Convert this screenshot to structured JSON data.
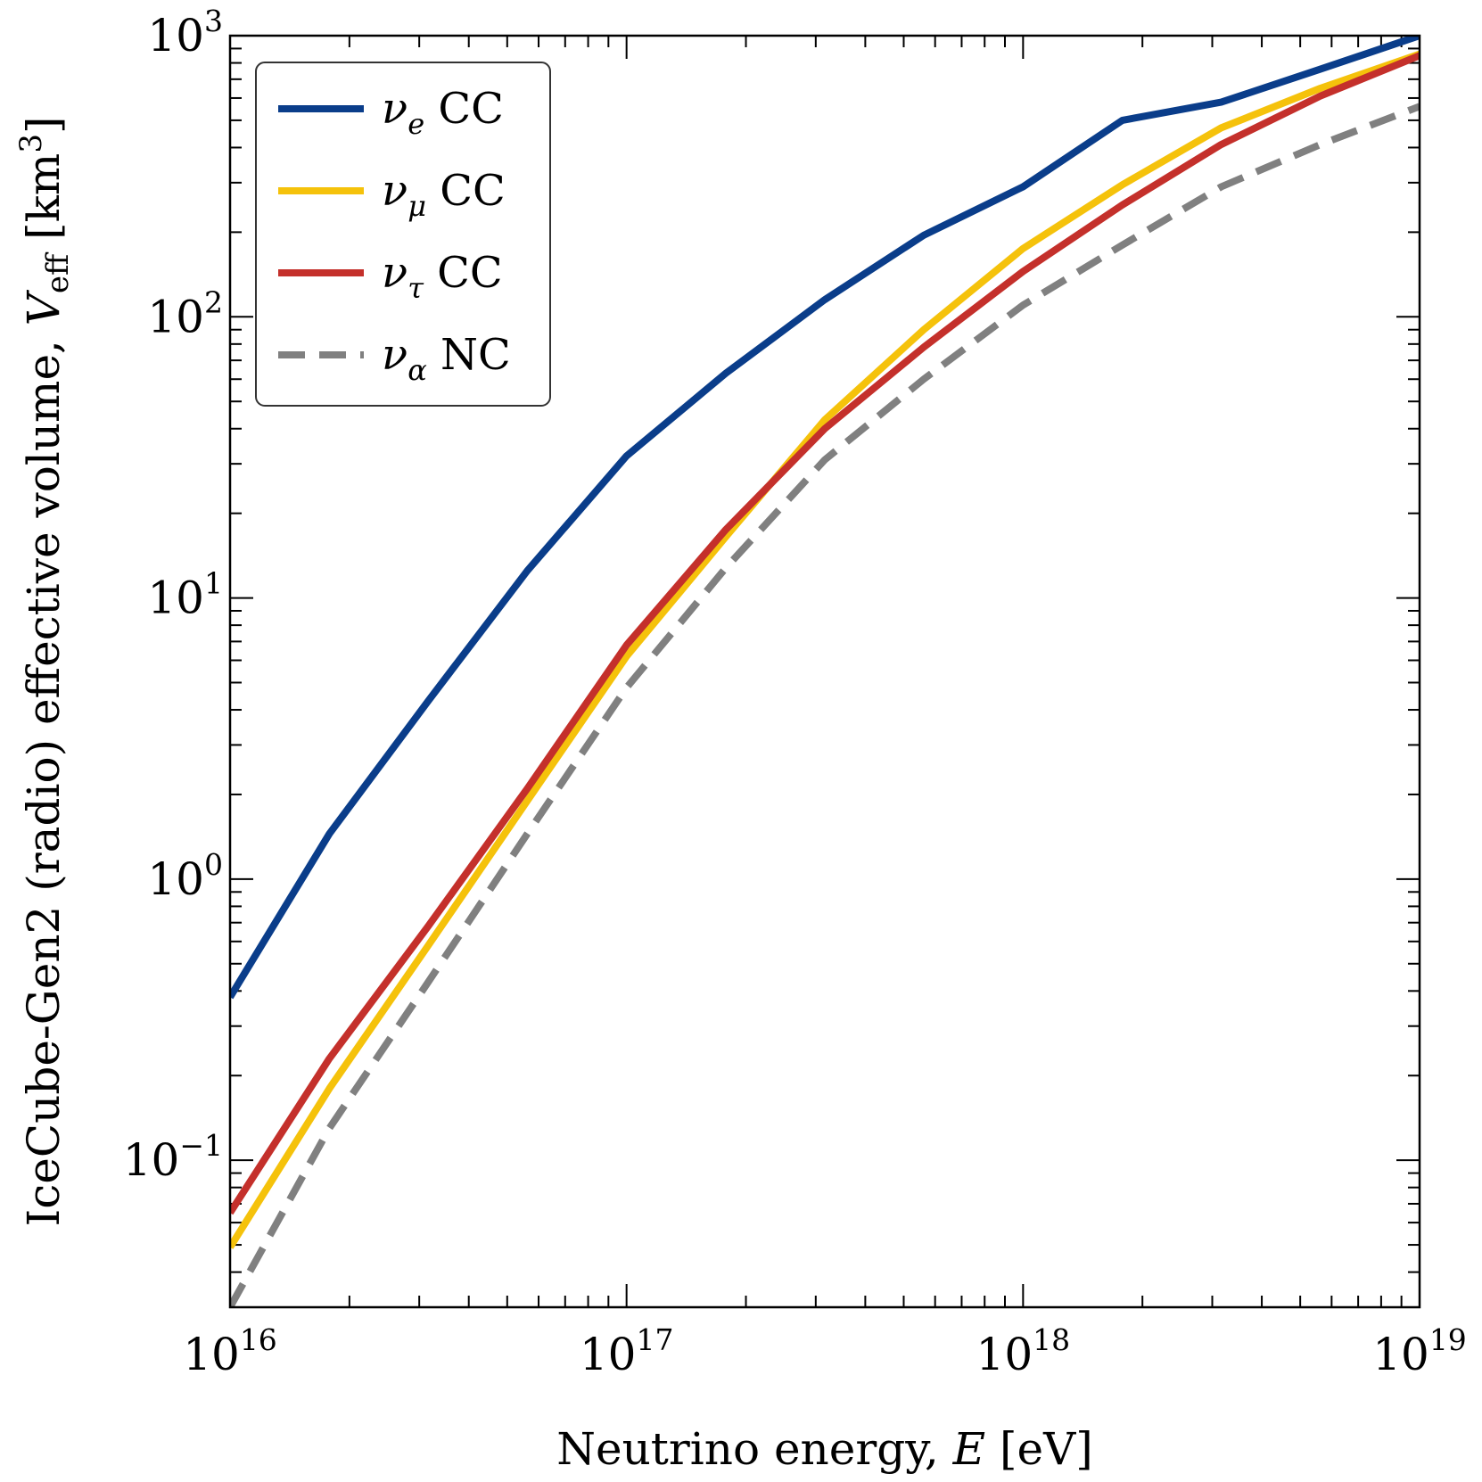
{
  "chart_data": {
    "type": "line",
    "xlabel": "Neutrino energy, E [eV]",
    "ylabel": "IceCube-Gen2 (radio) effective volume, V_eff [km^3]",
    "xlabel_parts": {
      "main": "Neutrino energy, ",
      "var": "E",
      "unit": " [eV]"
    },
    "ylabel_parts": {
      "main": "IceCube-Gen2 (radio) effective volume, ",
      "var": "V",
      "sub": "eff",
      "unit_open": " [km",
      "unit_sup": "3",
      "unit_close": "]"
    },
    "xscale": "log",
    "yscale": "log",
    "xlim": [
      1e+16,
      1e+19
    ],
    "ylim": [
      0.03,
      1000
    ],
    "x_ticks": [
      {
        "value": 1e+16,
        "base": "10",
        "exp": "16"
      },
      {
        "value": 1e+17,
        "base": "10",
        "exp": "17"
      },
      {
        "value": 1e+18,
        "base": "10",
        "exp": "18"
      },
      {
        "value": 1e+19,
        "base": "10",
        "exp": "19"
      }
    ],
    "y_ticks": [
      {
        "value": 0.1,
        "base": "10",
        "exp": "−1"
      },
      {
        "value": 1,
        "base": "10",
        "exp": "0"
      },
      {
        "value": 10,
        "base": "10",
        "exp": "1"
      },
      {
        "value": 100,
        "base": "10",
        "exp": "2"
      },
      {
        "value": 1000,
        "base": "10",
        "exp": "3"
      }
    ],
    "grid": false,
    "legend_position": "top-left",
    "x": [
      1e+16,
      1.78e+16,
      3.16e+16,
      5.62e+16,
      1e+17,
      1.78e+17,
      3.16e+17,
      5.62e+17,
      1e+18,
      1.78e+18,
      3.16e+18,
      5.62e+18,
      1e+19
    ],
    "series": [
      {
        "name": "ν_e CC",
        "label_main": "ν",
        "label_sub": "e",
        "label_rest": " CC",
        "color": "#0a3d8a",
        "dash": "solid",
        "values": [
          0.38,
          1.45,
          4.3,
          12.5,
          32,
          63,
          115,
          195,
          290,
          500,
          580,
          760,
          1000
        ]
      },
      {
        "name": "ν_μ CC",
        "label_main": "ν",
        "label_sub": "μ",
        "label_rest": " CC",
        "color": "#f5c20b",
        "dash": "solid",
        "values": [
          0.049,
          0.18,
          0.58,
          1.9,
          6.2,
          16.5,
          43,
          90,
          175,
          295,
          470,
          650,
          860
        ]
      },
      {
        "name": "ν_τ CC",
        "label_main": "ν",
        "label_sub": "τ",
        "label_rest": " CC",
        "color": "#c4302b",
        "dash": "solid",
        "values": [
          0.065,
          0.23,
          0.68,
          2.1,
          6.8,
          17.5,
          40,
          78,
          145,
          250,
          410,
          610,
          850
        ]
      },
      {
        "name": "ν_α NC",
        "label_main": "ν",
        "label_sub": "α",
        "label_rest": " NC",
        "color": "#808080",
        "dash": "dashed",
        "values": [
          0.03,
          0.13,
          0.43,
          1.45,
          4.8,
          12.8,
          31,
          60,
          110,
          180,
          290,
          410,
          560
        ]
      }
    ]
  }
}
